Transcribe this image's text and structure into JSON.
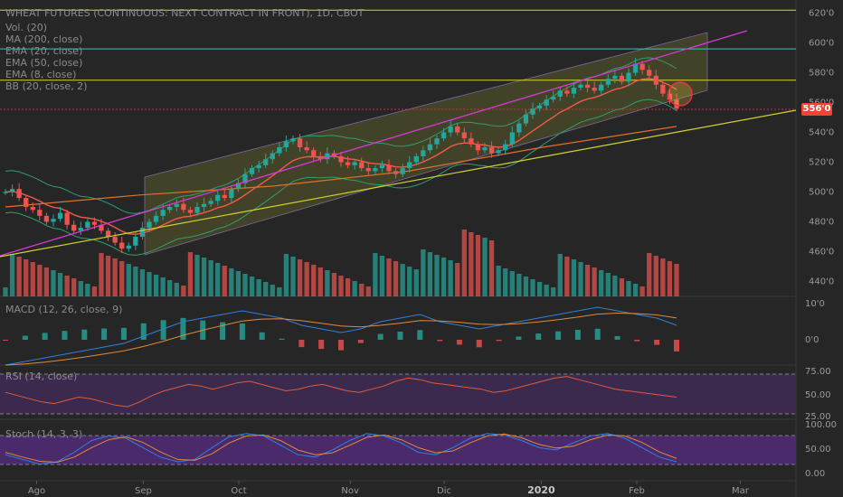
{
  "header": {
    "title": "WHEAT FUTURES (CONTINUOUS: NEXT CONTRACT IN FRONT), 1D, CBOT",
    "indicators": [
      "Vol. (20)",
      "MA (200, close)",
      "EMA (20, close)",
      "EMA (50, close)",
      "EMA (8, close)",
      "BB (20, close, 2)"
    ]
  },
  "panes": {
    "macd_label": "MACD (12, 26, close, 9)",
    "rsi_label": "RSI (14, close)",
    "stoch_label": "Stoch (14, 3, 3)"
  },
  "last_price": "556'0",
  "colors": {
    "up": "#26a69a",
    "down": "#ef5350",
    "channel_fill": "#5a5a2a",
    "pink_line": "#d63ad6",
    "yellow_line": "#d4d42a",
    "cyan_line": "#3fc0c0",
    "ema20": "#f25a4a",
    "ma200": "#e0702a",
    "bb": "#2f9e6e",
    "rsi": "#e05a3a",
    "stoch_k": "#2f7fe0",
    "stoch_d": "#e08a3a"
  },
  "chart_data": {
    "type": "candlestick",
    "y_ticks": [
      "620'0",
      "600'0",
      "580'0",
      "560'0",
      "540'0",
      "520'0",
      "500'0",
      "480'0",
      "460'0",
      "440'0"
    ],
    "ylim": [
      436,
      624
    ],
    "x_ticks": [
      {
        "label": "Ago",
        "pos": 0.046
      },
      {
        "label": "Sep",
        "pos": 0.18
      },
      {
        "label": "Oct",
        "pos": 0.3
      },
      {
        "label": "Nov",
        "pos": 0.44
      },
      {
        "label": "Dic",
        "pos": 0.558
      },
      {
        "label": "2020",
        "pos": 0.68,
        "bold": true
      },
      {
        "label": "Feb",
        "pos": 0.8
      },
      {
        "label": "Mar",
        "pos": 0.93
      }
    ],
    "horizontal_levels": [
      {
        "value": 622,
        "color": "yellow"
      },
      {
        "value": 596,
        "color": "cyan"
      },
      {
        "value": 575,
        "color": "yellow"
      }
    ],
    "last_value": 556,
    "price_path": [
      500,
      502,
      496,
      490,
      488,
      484,
      480,
      482,
      486,
      478,
      474,
      476,
      480,
      478,
      474,
      470,
      466,
      462,
      464,
      470,
      476,
      480,
      484,
      488,
      490,
      492,
      488,
      486,
      490,
      492,
      494,
      498,
      496,
      502,
      506,
      512,
      516,
      518,
      522,
      526,
      530,
      534,
      536,
      530,
      528,
      524,
      522,
      526,
      524,
      520,
      518,
      520,
      516,
      514,
      516,
      518,
      514,
      512,
      516,
      520,
      524,
      528,
      532,
      536,
      540,
      544,
      540,
      536,
      532,
      528,
      530,
      526,
      528,
      532,
      540,
      546,
      552,
      556,
      558,
      562,
      564,
      568,
      566,
      570,
      572,
      570,
      568,
      572,
      576,
      578,
      574,
      580,
      586,
      582,
      578,
      572,
      566,
      562,
      556
    ],
    "ma200_path": [
      [
        0,
        490
      ],
      [
        0.2,
        498
      ],
      [
        0.4,
        504
      ],
      [
        0.6,
        514
      ],
      [
        0.8,
        530
      ],
      [
        1,
        544
      ]
    ],
    "macd_path": [
      -0.7,
      -0.6,
      -0.5,
      -0.4,
      -0.3,
      -0.2,
      -0.1,
      0.1,
      0.3,
      0.5,
      0.6,
      0.7,
      0.8,
      0.7,
      0.6,
      0.4,
      0.3,
      0.2,
      0.3,
      0.5,
      0.6,
      0.7,
      0.5,
      0.4,
      0.3,
      0.4,
      0.5,
      0.6,
      0.7,
      0.8,
      0.9,
      0.8,
      0.7,
      0.6,
      0.4
    ],
    "rsi_path": [
      52,
      48,
      44,
      40,
      38,
      42,
      46,
      44,
      40,
      36,
      34,
      40,
      48,
      54,
      58,
      62,
      60,
      56,
      60,
      64,
      66,
      62,
      58,
      54,
      56,
      60,
      62,
      58,
      54,
      52,
      56,
      60,
      66,
      70,
      68,
      64,
      62,
      60,
      58,
      56,
      52,
      54,
      58,
      62,
      66,
      70,
      72,
      68,
      64,
      60,
      56,
      54,
      52,
      50,
      48,
      46
    ],
    "stoch_k_path": [
      40,
      30,
      20,
      25,
      45,
      70,
      80,
      75,
      55,
      35,
      25,
      30,
      55,
      78,
      85,
      80,
      60,
      40,
      35,
      50,
      70,
      85,
      80,
      65,
      45,
      40,
      55,
      75,
      85,
      82,
      70,
      55,
      50,
      65,
      80,
      85,
      75,
      55,
      35,
      25
    ],
    "stoch_d_path": [
      45,
      35,
      26,
      24,
      35,
      55,
      72,
      78,
      66,
      46,
      30,
      28,
      42,
      65,
      80,
      82,
      70,
      50,
      40,
      44,
      60,
      77,
      82,
      72,
      55,
      44,
      48,
      65,
      80,
      84,
      76,
      62,
      54,
      58,
      72,
      82,
      80,
      66,
      46,
      32
    ]
  }
}
